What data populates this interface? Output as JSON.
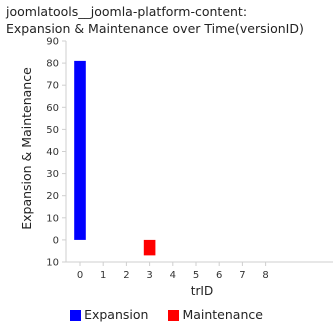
{
  "chart_data": {
    "type": "bar",
    "title": [
      "joomlatools__joomla-platform-content:",
      "Expansion & Maintenance over Time(versionID)"
    ],
    "xlabel": "trID",
    "ylabel": "Expansion & Maintenance",
    "x_ticks": [
      "0",
      "1",
      "2",
      "3",
      "4",
      "5",
      "6",
      "7",
      "8"
    ],
    "y_ticks": [
      {
        "value": 90,
        "label": "90"
      },
      {
        "value": 80,
        "label": "80"
      },
      {
        "value": 70,
        "label": "70"
      },
      {
        "value": 60,
        "label": "60"
      },
      {
        "value": 50,
        "label": "50"
      },
      {
        "value": 40,
        "label": "40"
      },
      {
        "value": 30,
        "label": "30"
      },
      {
        "value": 20,
        "label": "20"
      },
      {
        "value": 10,
        "label": "10"
      },
      {
        "value": 0,
        "label": "0"
      },
      {
        "value": -10,
        "label": "10"
      }
    ],
    "xlim": [
      -0.6,
      8.6
    ],
    "ylim": [
      -10,
      90
    ],
    "series": [
      {
        "name": "Expansion",
        "color": "#0000ff",
        "points": [
          {
            "x": 0,
            "y": 81
          }
        ]
      },
      {
        "name": "Maintenance",
        "color": "#ff0000",
        "points": [
          {
            "x": 3,
            "y": -7
          }
        ]
      }
    ],
    "bar_width": 0.4,
    "grid": false,
    "legend_position": "bottom"
  }
}
